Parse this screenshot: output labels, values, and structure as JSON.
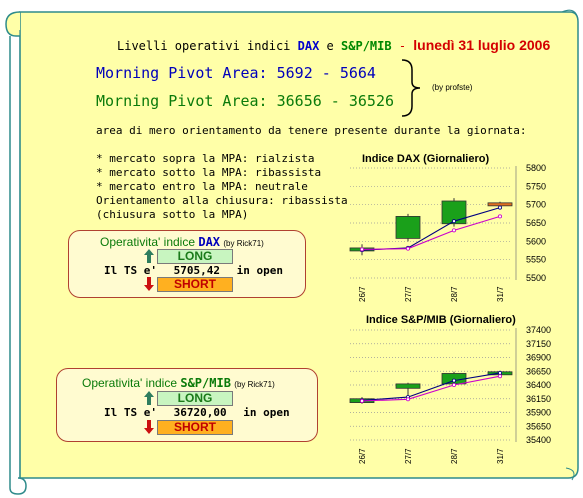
{
  "header": {
    "prefix": "Livelli operativi indici",
    "dax": "DAX",
    "conj": "e",
    "mib": "S&P/MIB",
    "dash": "-",
    "date": "lunedì 31 luglio 2006"
  },
  "mpa": {
    "dax_label": "Morning Pivot Area:",
    "dax_range": "5692 - 5664",
    "mib_label": "Morning Pivot Area:",
    "mib_range": "36656 - 36526",
    "by": "(by profste)"
  },
  "orientation_note": "area di mero orientamento da tenere presente durante la giornata:",
  "rules": [
    "* mercato sopra la MPA: rialzista",
    "* mercato sotto la MPA: ribassista",
    "* mercato entro la MPA: neutrale",
    "Orientamento alla chiusura: ribassista",
    "(chiusura sotto la MPA)"
  ],
  "op_dax": {
    "title": "Operativita' indice",
    "index": "DAX",
    "by": "(by Rick71)",
    "long": "LONG",
    "short": "SHORT",
    "ts_label": "Il TS e'",
    "ts_value": "5705,42",
    "ts_status": "in open"
  },
  "op_mib": {
    "title": "Operativita' indice",
    "index": "S&P/MIB",
    "by": "(by Rick71)",
    "long": "LONG",
    "short": "SHORT",
    "ts_label": "Il TS e'",
    "ts_value": "36720,00",
    "ts_status": "in open"
  },
  "chart_data": [
    {
      "type": "candlestick",
      "title": "Indice DAX (Giornaliero)",
      "categories": [
        "26/7",
        "27/7",
        "28/7",
        "31/7"
      ],
      "ylim": [
        5500,
        5800
      ],
      "yticks": [
        5800,
        5750,
        5700,
        5650,
        5600,
        5550,
        5500
      ],
      "candles": [
        {
          "open": 5575,
          "close": 5582,
          "high": 5592,
          "low": 5562,
          "color": "#1aa01a"
        },
        {
          "open": 5608,
          "close": 5668,
          "high": 5675,
          "low": 5600,
          "color": "#1aa01a"
        },
        {
          "open": 5648,
          "close": 5710,
          "high": 5718,
          "low": 5640,
          "color": "#1aa01a"
        },
        {
          "open": 5705,
          "close": 5700,
          "high": 5708,
          "low": 5696,
          "color": "#e07020"
        }
      ],
      "series": [
        {
          "values": [
            5576,
            5582,
            5655,
            5692
          ],
          "color": "#000080"
        },
        {
          "values": [
            5578,
            5580,
            5630,
            5668
          ],
          "color": "#cc00cc"
        }
      ]
    },
    {
      "type": "candlestick",
      "title": "Indice S&P/MIB (Giornaliero)",
      "categories": [
        "26/7",
        "27/7",
        "28/7",
        "31/7"
      ],
      "ylim": [
        35400,
        37400
      ],
      "yticks": [
        37400,
        37150,
        36900,
        36650,
        36400,
        36150,
        35900,
        35650,
        35400
      ],
      "candles": [
        {
          "open": 36080,
          "close": 36150,
          "high": 36180,
          "low": 36060,
          "color": "#1aa01a"
        },
        {
          "open": 36340,
          "close": 36420,
          "high": 36440,
          "low": 36200,
          "color": "#1aa01a"
        },
        {
          "open": 36420,
          "close": 36610,
          "high": 36640,
          "low": 36390,
          "color": "#1aa01a"
        },
        {
          "open": 36620,
          "close": 36640,
          "high": 36660,
          "low": 36600,
          "color": "#1aa01a"
        }
      ],
      "series": [
        {
          "values": [
            36120,
            36180,
            36480,
            36620
          ],
          "color": "#000080"
        },
        {
          "values": [
            36110,
            36140,
            36400,
            36560
          ],
          "color": "#cc00cc"
        }
      ]
    }
  ]
}
